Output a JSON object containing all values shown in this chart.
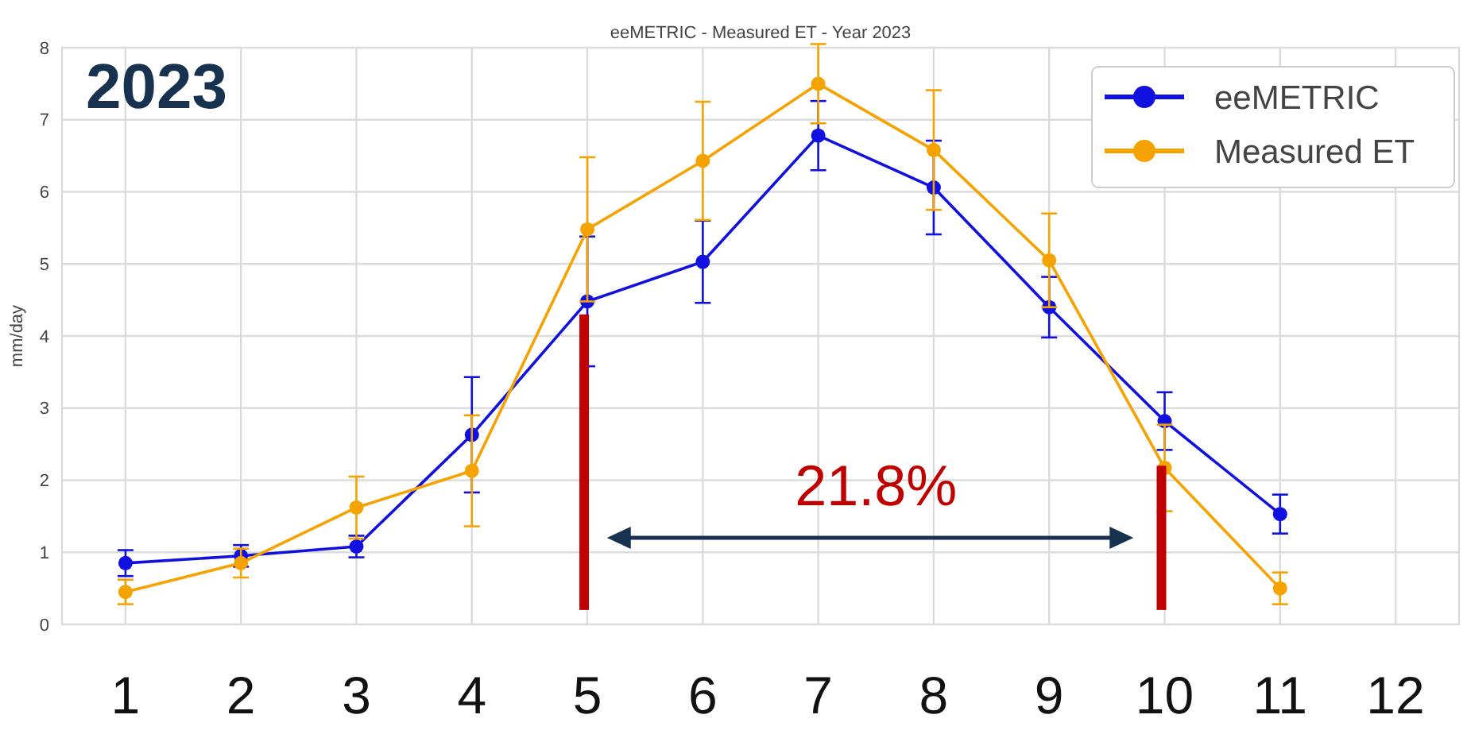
{
  "chart_data": {
    "type": "line",
    "title": "eeMETRIC - Measured ET - Year 2023",
    "ylabel": "mm/day",
    "annotations": [
      "2023",
      "21.8%"
    ],
    "x": [
      1,
      2,
      3,
      4,
      5,
      6,
      7,
      8,
      9,
      10,
      11
    ],
    "xlim": [
      0.45,
      12.55
    ],
    "xticks": [
      1,
      2,
      3,
      4,
      5,
      6,
      7,
      8,
      9,
      10,
      11,
      12
    ],
    "ylim": [
      0,
      8
    ],
    "yticks": [
      0,
      1,
      2,
      3,
      4,
      5,
      6,
      7,
      8
    ],
    "series": [
      {
        "name": "eeMETRIC",
        "color": "#1010e0",
        "values": [
          0.85,
          0.95,
          1.08,
          2.63,
          4.48,
          5.03,
          6.78,
          6.06,
          4.4,
          2.82,
          1.53
        ],
        "errors": [
          0.18,
          0.15,
          0.15,
          0.8,
          0.9,
          0.57,
          0.48,
          0.65,
          0.42,
          0.4,
          0.27
        ]
      },
      {
        "name": "Measured ET",
        "color": "#f5a300",
        "values": [
          0.45,
          0.85,
          1.62,
          2.13,
          5.48,
          6.43,
          7.5,
          6.58,
          5.05,
          2.17,
          0.5
        ],
        "errors": [
          0.17,
          0.2,
          0.43,
          0.77,
          1.0,
          0.82,
          0.55,
          0.83,
          0.65,
          0.6,
          0.22
        ]
      }
    ],
    "marker": "circle",
    "grid": true,
    "legend": "top right"
  }
}
